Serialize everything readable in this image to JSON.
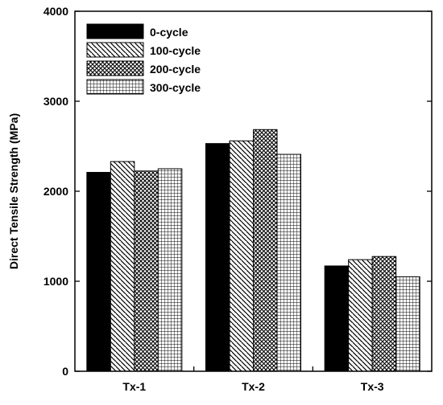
{
  "chart_data": {
    "type": "bar",
    "categories": [
      "Tx-1",
      "Tx-2",
      "Tx-3"
    ],
    "series": [
      {
        "name": "0-cycle",
        "values": [
          2210,
          2530,
          1170
        ],
        "pattern": "solid"
      },
      {
        "name": "100-cycle",
        "values": [
          2330,
          2560,
          1240
        ],
        "pattern": "diag-down"
      },
      {
        "name": "200-cycle",
        "values": [
          2225,
          2685,
          1275
        ],
        "pattern": "crosshatch"
      },
      {
        "name": "300-cycle",
        "values": [
          2250,
          2410,
          1050
        ],
        "pattern": "grid"
      }
    ],
    "ylabel": "Direct Tensile Strength (MPa)",
    "xlabel": "",
    "ylim": [
      0,
      4000
    ],
    "yticks": [
      0,
      1000,
      2000,
      3000,
      4000
    ],
    "grid": false,
    "legend_position": "top-left",
    "colors": {
      "fill": "#000000",
      "background": "#ffffff"
    }
  }
}
